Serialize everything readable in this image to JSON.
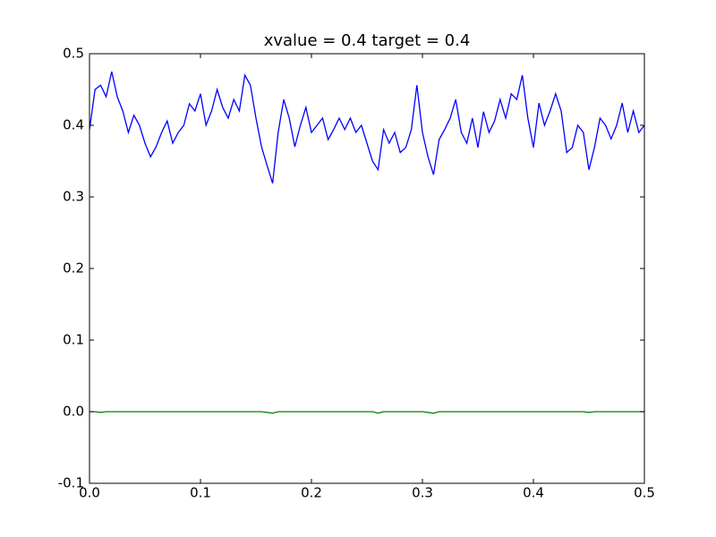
{
  "chart_data": {
    "type": "line",
    "title": "xvalue = 0.4 target = 0.4",
    "x": [
      0,
      0.005,
      0.01,
      0.015,
      0.02,
      0.025,
      0.03,
      0.035,
      0.04,
      0.045,
      0.05,
      0.055,
      0.06,
      0.065,
      0.07,
      0.075,
      0.08,
      0.085,
      0.09,
      0.095,
      0.1,
      0.105,
      0.11,
      0.115,
      0.12,
      0.125,
      0.13,
      0.135,
      0.14,
      0.145,
      0.15,
      0.155,
      0.16,
      0.165,
      0.17,
      0.175,
      0.18,
      0.185,
      0.19,
      0.195,
      0.2,
      0.205,
      0.21,
      0.215,
      0.22,
      0.225,
      0.23,
      0.235,
      0.24,
      0.245,
      0.25,
      0.255,
      0.26,
      0.265,
      0.27,
      0.275,
      0.28,
      0.285,
      0.29,
      0.295,
      0.3,
      0.305,
      0.31,
      0.315,
      0.32,
      0.325,
      0.33,
      0.335,
      0.34,
      0.345,
      0.35,
      0.355,
      0.36,
      0.365,
      0.37,
      0.375,
      0.38,
      0.385,
      0.39,
      0.395,
      0.4,
      0.405,
      0.41,
      0.415,
      0.42,
      0.425,
      0.43,
      0.435,
      0.44,
      0.445,
      0.45,
      0.455,
      0.46,
      0.465,
      0.47,
      0.475,
      0.48,
      0.485,
      0.49,
      0.495,
      0.5
    ],
    "series": [
      {
        "color": "#0000ff",
        "values": [
          0.394,
          0.45,
          0.456,
          0.44,
          0.475,
          0.44,
          0.42,
          0.39,
          0.414,
          0.4,
          0.375,
          0.356,
          0.37,
          0.39,
          0.406,
          0.375,
          0.39,
          0.4,
          0.43,
          0.42,
          0.444,
          0.4,
          0.42,
          0.45,
          0.425,
          0.41,
          0.436,
          0.42,
          0.47,
          0.456,
          0.41,
          0.37,
          0.344,
          0.319,
          0.39,
          0.436,
          0.41,
          0.37,
          0.4,
          0.425,
          0.39,
          0.4,
          0.41,
          0.38,
          0.394,
          0.41,
          0.394,
          0.41,
          0.39,
          0.4,
          0.375,
          0.35,
          0.338,
          0.394,
          0.375,
          0.39,
          0.362,
          0.369,
          0.394,
          0.456,
          0.39,
          0.356,
          0.331,
          0.38,
          0.394,
          0.41,
          0.436,
          0.39,
          0.375,
          0.41,
          0.369,
          0.419,
          0.39,
          0.406,
          0.436,
          0.41,
          0.444,
          0.436,
          0.47,
          0.41,
          0.369,
          0.431,
          0.4,
          0.42,
          0.444,
          0.42,
          0.362,
          0.369,
          0.4,
          0.39,
          0.338,
          0.369,
          0.41,
          0.4,
          0.381,
          0.4,
          0.431,
          0.39,
          0.42,
          0.39,
          0.4
        ]
      },
      {
        "color": "#008000",
        "values": [
          0,
          0,
          -0.001,
          0,
          0,
          0,
          0,
          0,
          0,
          0,
          0,
          0,
          0,
          0,
          0,
          0,
          0,
          0,
          0,
          0,
          0,
          0,
          0,
          0,
          0,
          0,
          0,
          0,
          0,
          0,
          0,
          0,
          -0.001,
          -0.002,
          0,
          0,
          0,
          0,
          0,
          0,
          0,
          0,
          0,
          0,
          0,
          0,
          0,
          0,
          0,
          0,
          0,
          0,
          -0.002,
          0,
          0,
          0,
          0,
          0,
          0,
          0,
          0,
          -0.001,
          -0.002,
          0,
          0,
          0,
          0,
          0,
          0,
          0,
          0,
          0,
          0,
          0,
          0,
          0,
          0,
          0,
          0,
          0,
          0,
          0,
          0,
          0,
          0,
          0,
          0,
          0,
          0,
          0,
          -0.001,
          0,
          0,
          0,
          0,
          0,
          0,
          0,
          0,
          0,
          0
        ]
      }
    ],
    "xlim": [
      0,
      0.5
    ],
    "ylim": [
      -0.1,
      0.5
    ],
    "xticks": [
      {
        "value": 0,
        "label": "0.0"
      },
      0.1,
      0.2,
      0.3,
      0.4,
      0.5
    ],
    "yticks": [
      -0.1,
      {
        "value": 0,
        "label": "0.0"
      },
      0.1,
      0.2,
      0.3,
      0.4,
      0.5
    ],
    "grid": false
  }
}
